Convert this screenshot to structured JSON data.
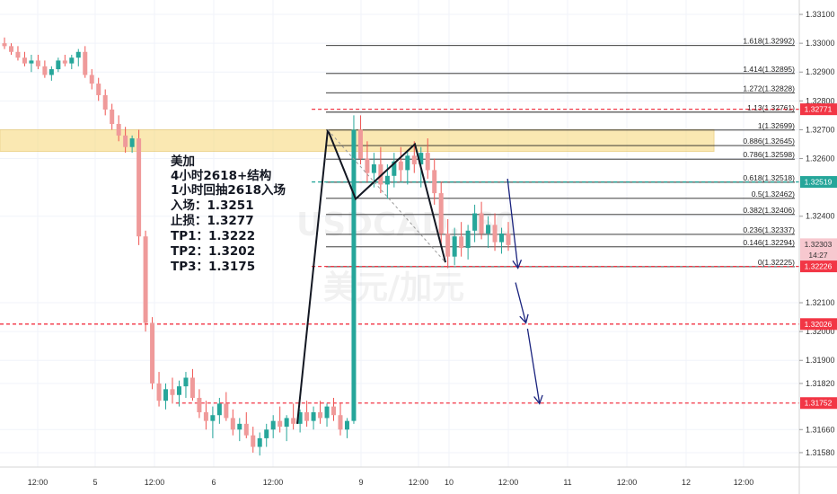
{
  "chart_data": {
    "type": "candlestick",
    "symbol_watermark": "USDCAD, 60",
    "symbol_watermark_cn": "美元/加元",
    "x_ticks": [
      "12:00",
      "5",
      "12:00",
      "6",
      "12:00",
      "9",
      "12:00",
      "10",
      "12:00",
      "11",
      "12:00",
      "12",
      "12:00"
    ],
    "y_ticks": [
      "1.33100",
      "1.33000",
      "1.32900",
      "1.32800",
      "1.32700",
      "1.32600",
      "1.32400",
      "1.32100",
      "1.32000",
      "1.31900",
      "1.31820",
      "1.31660",
      "1.31580"
    ],
    "ylim": [
      1.3153,
      1.3315
    ],
    "fib_levels": [
      {
        "label": "1.618(1.32992)",
        "value": 1.32992
      },
      {
        "label": "1.414(1.32895)",
        "value": 1.32895
      },
      {
        "label": "1.272(1.32828)",
        "value": 1.32828
      },
      {
        "label": "1.13(1.32761)",
        "value": 1.32761
      },
      {
        "label": "1(1.32699)",
        "value": 1.32699
      },
      {
        "label": "0.886(1.32645)",
        "value": 1.32645
      },
      {
        "label": "0.786(1.32598)",
        "value": 1.32598
      },
      {
        "label": "0.618(1.32518)",
        "value": 1.32518
      },
      {
        "label": "0.5(1.32462)",
        "value": 1.32462
      },
      {
        "label": "0.382(1.32406)",
        "value": 1.32406
      },
      {
        "label": "0.236(1.32337)",
        "value": 1.32337
      },
      {
        "label": "0.146(1.32294)",
        "value": 1.32294
      },
      {
        "label": "0(1.32225)",
        "value": 1.32225
      }
    ],
    "price_badges": [
      {
        "text": "1.32771",
        "value": 1.32771,
        "color": "#f23645"
      },
      {
        "text": "1.32519",
        "value": 1.32519,
        "color": "#26a69a"
      },
      {
        "text": "1.32303",
        "value": 1.32303,
        "color": "#f7c8cf"
      },
      {
        "text": "14:27",
        "value": 1.32265,
        "color": "#f7c8cf"
      },
      {
        "text": "1.32226",
        "value": 1.32226,
        "color": "#f23645"
      },
      {
        "text": "1.32026",
        "value": 1.32026,
        "color": "#f23645"
      },
      {
        "text": "1.31752",
        "value": 1.31752,
        "color": "#f23645"
      }
    ],
    "horizontal_lines": [
      {
        "value": 1.32771,
        "color": "#f23645",
        "style": "dashed",
        "from": 0.39
      },
      {
        "value": 1.32519,
        "color": "#26a69a",
        "style": "dashed",
        "from": 0.39
      },
      {
        "value": 1.32226,
        "color": "#f23645",
        "style": "dashed",
        "from": 0.39
      },
      {
        "value": 1.32026,
        "color": "#f23645",
        "style": "dashed",
        "from": 0.0
      },
      {
        "value": 1.31752,
        "color": "#f23645",
        "style": "dashed",
        "from": 0.22
      }
    ],
    "zone": {
      "low": 1.32625,
      "high": 1.327,
      "color": "#f7d774"
    },
    "candles": [
      [
        1.33,
        1.3302,
        1.3298,
        1.3299
      ],
      [
        1.3299,
        1.33,
        1.3296,
        1.3297
      ],
      [
        1.3297,
        1.3299,
        1.3294,
        1.3295
      ],
      [
        1.3295,
        1.3297,
        1.3292,
        1.3293
      ],
      [
        1.3293,
        1.3296,
        1.329,
        1.3294
      ],
      [
        1.3294,
        1.3296,
        1.3291,
        1.3292
      ],
      [
        1.3292,
        1.3294,
        1.3288,
        1.3289
      ],
      [
        1.3289,
        1.3292,
        1.3287,
        1.3291
      ],
      [
        1.3291,
        1.3295,
        1.329,
        1.3294
      ],
      [
        1.3294,
        1.3296,
        1.3292,
        1.3293
      ],
      [
        1.3293,
        1.3296,
        1.3291,
        1.3295
      ],
      [
        1.3295,
        1.3298,
        1.3292,
        1.3297
      ],
      [
        1.3297,
        1.3299,
        1.3288,
        1.3289
      ],
      [
        1.3289,
        1.3291,
        1.3284,
        1.3286
      ],
      [
        1.3286,
        1.3288,
        1.328,
        1.3282
      ],
      [
        1.3282,
        1.3284,
        1.3275,
        1.3277
      ],
      [
        1.3277,
        1.3279,
        1.327,
        1.3272
      ],
      [
        1.3272,
        1.3275,
        1.3266,
        1.3268
      ],
      [
        1.3268,
        1.3271,
        1.3262,
        1.3264
      ],
      [
        1.3264,
        1.3268,
        1.3262,
        1.3267
      ],
      [
        1.3267,
        1.327,
        1.323,
        1.3233
      ],
      [
        1.3233,
        1.3235,
        1.32,
        1.3203
      ],
      [
        1.3203,
        1.3205,
        1.318,
        1.3182
      ],
      [
        1.3182,
        1.3186,
        1.3174,
        1.3176
      ],
      [
        1.3176,
        1.3182,
        1.3173,
        1.318
      ],
      [
        1.318,
        1.3184,
        1.3175,
        1.3178
      ],
      [
        1.3178,
        1.3183,
        1.3174,
        1.3181
      ],
      [
        1.3181,
        1.3186,
        1.3177,
        1.3184
      ],
      [
        1.3184,
        1.3187,
        1.3176,
        1.3177
      ],
      [
        1.3177,
        1.318,
        1.317,
        1.3172
      ],
      [
        1.3172,
        1.3176,
        1.3166,
        1.3169
      ],
      [
        1.3169,
        1.3174,
        1.3163,
        1.3171
      ],
      [
        1.3171,
        1.3177,
        1.3168,
        1.3175
      ],
      [
        1.3175,
        1.3179,
        1.3169,
        1.317
      ],
      [
        1.317,
        1.3173,
        1.3164,
        1.3166
      ],
      [
        1.3166,
        1.317,
        1.3162,
        1.3168
      ],
      [
        1.3168,
        1.3172,
        1.3163,
        1.3164
      ],
      [
        1.3164,
        1.3167,
        1.3158,
        1.316
      ],
      [
        1.316,
        1.3165,
        1.3157,
        1.3163
      ],
      [
        1.3163,
        1.3168,
        1.316,
        1.3166
      ],
      [
        1.3166,
        1.3171,
        1.3163,
        1.3169
      ],
      [
        1.3169,
        1.3174,
        1.3165,
        1.3167
      ],
      [
        1.3167,
        1.3171,
        1.3162,
        1.317
      ],
      [
        1.317,
        1.3175,
        1.3166,
        1.3168
      ],
      [
        1.3168,
        1.3173,
        1.3165,
        1.3172
      ],
      [
        1.3172,
        1.3176,
        1.3167,
        1.3169
      ],
      [
        1.3169,
        1.3174,
        1.3166,
        1.3172
      ],
      [
        1.3172,
        1.3176,
        1.3168,
        1.317
      ],
      [
        1.317,
        1.3175,
        1.3167,
        1.3174
      ],
      [
        1.3174,
        1.3177,
        1.3169,
        1.3171
      ],
      [
        1.3171,
        1.3175,
        1.3164,
        1.3166
      ],
      [
        1.3166,
        1.317,
        1.3163,
        1.3169
      ],
      [
        1.3169,
        1.3275,
        1.3168,
        1.327
      ],
      [
        1.327,
        1.3275,
        1.3258,
        1.326
      ],
      [
        1.326,
        1.3266,
        1.3252,
        1.3255
      ],
      [
        1.3255,
        1.3262,
        1.325,
        1.3258
      ],
      [
        1.3258,
        1.3264,
        1.3248,
        1.3251
      ],
      [
        1.3251,
        1.3258,
        1.3246,
        1.3254
      ],
      [
        1.3254,
        1.3262,
        1.325,
        1.3259
      ],
      [
        1.3259,
        1.3264,
        1.3252,
        1.3256
      ],
      [
        1.3256,
        1.3263,
        1.3251,
        1.3261
      ],
      [
        1.3261,
        1.3266,
        1.3255,
        1.3258
      ],
      [
        1.3258,
        1.3264,
        1.325,
        1.3262
      ],
      [
        1.3262,
        1.3267,
        1.3253,
        1.3256
      ],
      [
        1.3256,
        1.326,
        1.3244,
        1.3248
      ],
      [
        1.3248,
        1.3252,
        1.323,
        1.3234
      ],
      [
        1.3234,
        1.3239,
        1.3222,
        1.3226
      ],
      [
        1.3226,
        1.3236,
        1.3223,
        1.3233
      ],
      [
        1.3233,
        1.3238,
        1.3226,
        1.3229
      ],
      [
        1.3229,
        1.3237,
        1.3225,
        1.3235
      ],
      [
        1.3235,
        1.3244,
        1.3231,
        1.3241
      ],
      [
        1.3241,
        1.3245,
        1.3232,
        1.3234
      ],
      [
        1.3234,
        1.324,
        1.3229,
        1.3237
      ],
      [
        1.3237,
        1.3241,
        1.3228,
        1.3231
      ],
      [
        1.3231,
        1.3236,
        1.3227,
        1.3234
      ],
      [
        1.3234,
        1.3238,
        1.3228,
        1.323
      ]
    ],
    "zigzag_pattern": [
      [
        1.3168,
        0
      ],
      [
        1.327,
        1
      ],
      [
        1.3246,
        2
      ],
      [
        1.3265,
        3
      ],
      [
        1.3224,
        4
      ]
    ],
    "arrows": [
      {
        "from": [
          0.635,
          1.3253
        ],
        "to": [
          0.648,
          1.3222
        ]
      },
      {
        "from": [
          0.645,
          1.3217
        ],
        "to": [
          0.658,
          1.3203
        ]
      },
      {
        "from": [
          0.66,
          1.3201
        ],
        "to": [
          0.675,
          1.3175
        ]
      }
    ]
  },
  "annotation": {
    "lines": [
      "美加",
      "4小时2618+结构",
      "1小时回抽2618入场",
      "入场：1.3251",
      "止损：1.3277",
      "TP1：1.3222",
      "TP2：1.3202",
      "TP3：1.3175"
    ]
  }
}
